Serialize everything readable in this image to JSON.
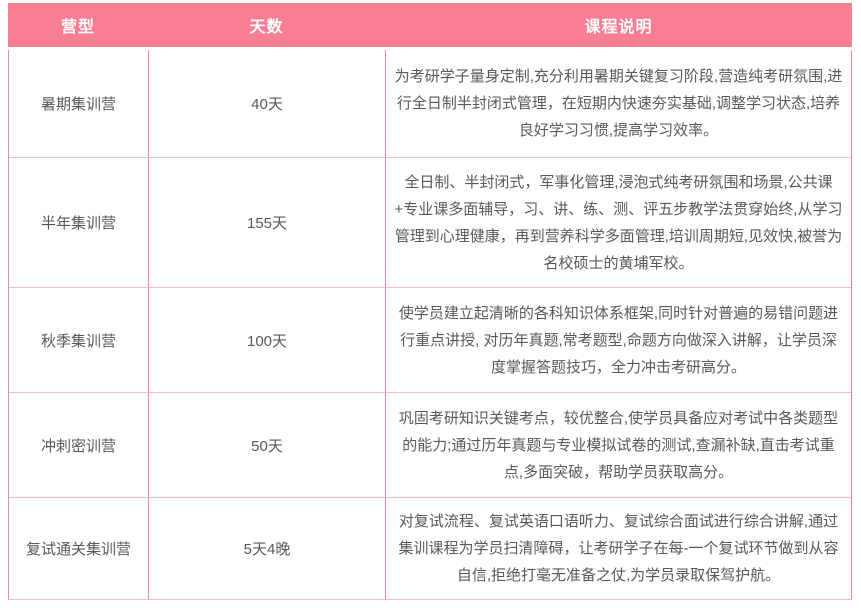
{
  "table": {
    "columns": {
      "camp": "营型",
      "days": "天数",
      "description": "课程说明"
    },
    "rows": [
      {
        "camp": "暑期集训营",
        "days": "40天",
        "description": "为考研学子量身定制,充分利用暑期关键复习阶段,营造纯考研氛围,进行全日制半封闭式管理，在短期内快速夯实基础,调整学习状态,培养良好学习习惯,提高学习效率。"
      },
      {
        "camp": "半年集训营",
        "days": "155天",
        "description": "全日制、半封闭式，军事化管理,浸泡式纯考研氛围和场景,公共课+专业课多面辅导，习、讲、练、测、评五步教学法贯穿始终,从学习管理到心理健康，再到营养科学多面管理,培训周期短,见效快,被誉为名校硕士的黄埔军校。"
      },
      {
        "camp": "秋季集训营",
        "days": "100天",
        "description": "使学员建立起清晰的各科知识体系框架,同时针对普遍的易错问题进行重点讲授, 对历年真题,常考题型,命题方向做深入讲解，让学员深度掌握答题技巧，全力冲击考研高分。"
      },
      {
        "camp": "冲刺密训营",
        "days": "50天",
        "description": "巩固考研知识关键考点，较优整合,使学员具备应对考试中各类题型的能力;通过历年真题与专业模拟试卷的测试,查漏补缺,直击考试重点,多面突破，帮助学员获取高分。"
      },
      {
        "camp": "复试通关集训营",
        "days": "5天4晚",
        "description": "对复试流程、复试英语口语听力、复试综合面试进行综合讲解,通过集训课程为学员扫清障碍，让考研学子在每-一个复试环节做到从容自信,拒绝打毫无准备之仗,为学员录取保驾护航。"
      }
    ],
    "colors": {
      "header_bg": "#f97e92",
      "header_text": "#ffffff",
      "border_vertical": "#ef87a1",
      "border_horizontal": "#f5b8c6",
      "body_text": "#595959"
    }
  }
}
